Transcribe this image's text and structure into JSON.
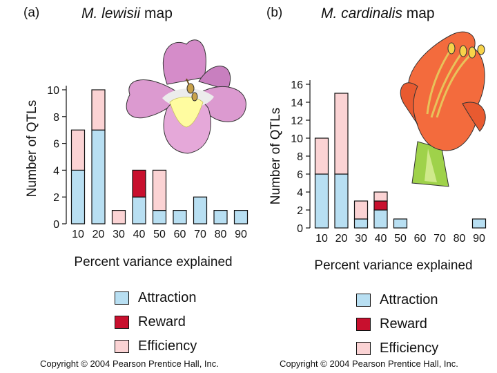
{
  "colors": {
    "attraction": "#b8dff2",
    "reward": "#c8102e",
    "efficiency": "#fbd3d4"
  },
  "legend": [
    {
      "key": "attraction",
      "label": "Attraction"
    },
    {
      "key": "reward",
      "label": "Reward"
    },
    {
      "key": "efficiency",
      "label": "Efficiency"
    }
  ],
  "panel_a": {
    "letter": "(a)",
    "title_species": "M. lewisii",
    "title_suffix": "map",
    "copyright": "Copyright © 2004 Pearson Prentice Hall, Inc.",
    "illustration": "m-lewisii-flower-icon"
  },
  "panel_b": {
    "letter": "(b)",
    "title_species": "M. cardinalis",
    "title_suffix": "map",
    "copyright": "Copyright © 2004 Pearson Prentice Hall, Inc.",
    "illustration": "m-cardinalis-flower-icon"
  },
  "chart_data": [
    {
      "type": "bar",
      "stacked": true,
      "title": "M. lewisii map",
      "xlabel": "Percent variance explained",
      "ylabel": "Number of QTLs",
      "categories": [
        "10",
        "20",
        "30",
        "40",
        "50",
        "60",
        "70",
        "80",
        "90"
      ],
      "series": [
        {
          "name": "Attraction",
          "key": "attraction",
          "values": [
            4,
            7,
            0,
            2,
            1,
            1,
            2,
            1,
            1
          ]
        },
        {
          "name": "Reward",
          "key": "reward",
          "values": [
            0,
            0,
            0,
            2,
            0,
            0,
            0,
            0,
            0
          ]
        },
        {
          "name": "Efficiency",
          "key": "efficiency",
          "values": [
            3,
            3,
            1,
            0,
            3,
            0,
            0,
            0,
            0
          ]
        }
      ],
      "ylim": [
        0,
        10
      ],
      "yticks": [
        0,
        2,
        4,
        6,
        8,
        10
      ]
    },
    {
      "type": "bar",
      "stacked": true,
      "title": "M. cardinalis map",
      "xlabel": "Percent variance explained",
      "ylabel": "Number of QTLs",
      "categories": [
        "10",
        "20",
        "30",
        "40",
        "50",
        "60",
        "70",
        "80",
        "90"
      ],
      "series": [
        {
          "name": "Attraction",
          "key": "attraction",
          "values": [
            6,
            6,
            1,
            2,
            1,
            0,
            0,
            0,
            1
          ]
        },
        {
          "name": "Reward",
          "key": "reward",
          "values": [
            0,
            0,
            0,
            1,
            0,
            0,
            0,
            0,
            0
          ]
        },
        {
          "name": "Efficiency",
          "key": "efficiency",
          "values": [
            4,
            9,
            2,
            1,
            0,
            0,
            0,
            0,
            0
          ]
        }
      ],
      "ylim": [
        0,
        16
      ],
      "yticks": [
        0,
        2,
        4,
        6,
        8,
        10,
        12,
        14,
        16
      ]
    }
  ]
}
